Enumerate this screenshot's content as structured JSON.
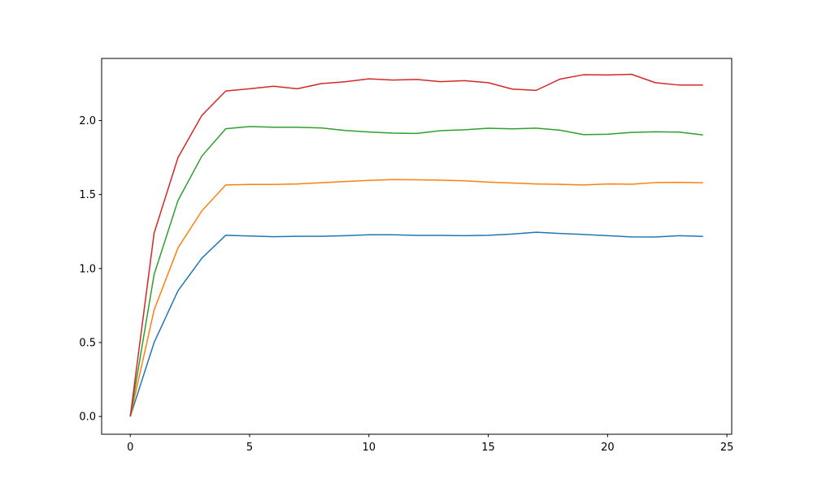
{
  "chart_data": {
    "type": "line",
    "x": [
      0,
      1,
      2,
      3,
      4,
      5,
      6,
      7,
      8,
      9,
      10,
      11,
      12,
      13,
      14,
      15,
      16,
      17,
      18,
      19,
      20,
      21,
      22,
      23,
      24
    ],
    "series": [
      {
        "color": "#1f77b4",
        "values": [
          0,
          0.5,
          0.85,
          1.07,
          1.225,
          1.22,
          1.215,
          1.218,
          1.218,
          1.222,
          1.228,
          1.228,
          1.224,
          1.224,
          1.222,
          1.225,
          1.233,
          1.245,
          1.237,
          1.23,
          1.222,
          1.214,
          1.213,
          1.222,
          1.217
        ]
      },
      {
        "color": "#ff7f0e",
        "values": [
          0,
          0.72,
          1.14,
          1.39,
          1.565,
          1.568,
          1.568,
          1.572,
          1.58,
          1.588,
          1.596,
          1.601,
          1.6,
          1.597,
          1.593,
          1.584,
          1.578,
          1.572,
          1.569,
          1.565,
          1.572,
          1.57,
          1.581,
          1.583,
          1.58
        ]
      },
      {
        "color": "#2ca02c",
        "values": [
          0,
          0.96,
          1.46,
          1.76,
          1.945,
          1.96,
          1.955,
          1.955,
          1.95,
          1.933,
          1.923,
          1.915,
          1.913,
          1.932,
          1.938,
          1.948,
          1.944,
          1.949,
          1.935,
          1.905,
          1.908,
          1.92,
          1.924,
          1.922,
          1.903
        ]
      },
      {
        "color": "#d62728",
        "values": [
          0,
          1.24,
          1.75,
          2.035,
          2.2,
          2.215,
          2.232,
          2.215,
          2.25,
          2.262,
          2.282,
          2.274,
          2.278,
          2.263,
          2.27,
          2.256,
          2.213,
          2.204,
          2.28,
          2.31,
          2.308,
          2.313,
          2.256,
          2.24,
          2.24
        ]
      }
    ],
    "xlim": [
      -1.2,
      25.2
    ],
    "xticks": [
      0,
      5,
      10,
      15,
      20,
      25
    ],
    "ylim": [
      -0.12,
      2.42
    ],
    "yticks": [
      {
        "value": 0,
        "label": "0.0"
      },
      0.5,
      {
        "value": 1,
        "label": "1.0"
      },
      1.5,
      {
        "value": 2,
        "label": "2.0"
      }
    ],
    "grid": false
  }
}
